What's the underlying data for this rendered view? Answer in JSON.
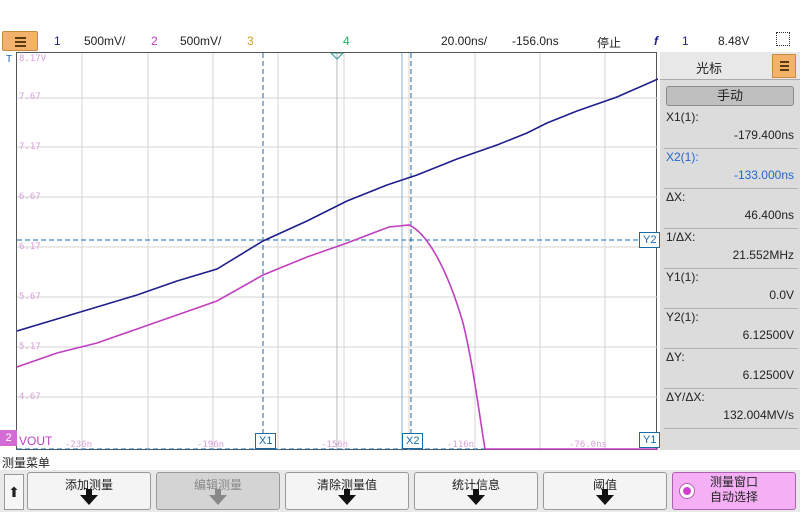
{
  "status": {
    "ch1_num": "1",
    "ch1_scale": "500mV/",
    "ch2_num": "2",
    "ch2_scale": "500mV/",
    "ch3_num": "3",
    "ch4_num": "4",
    "timebase": "20.00ns/",
    "delay": "-156.0ns",
    "run_state": "停止",
    "trigger_icon": "f",
    "trig_channel": "1",
    "trig_level": "8.48V"
  },
  "colors": {
    "ch1": "#1e1e8c",
    "ch2": "#c040c0",
    "ch3": "#d4a020",
    "ch4": "#20b060",
    "cursor": "#1a6aa8"
  },
  "screen": {
    "level_labels": [
      "8.17V",
      "7.67",
      "7.17",
      "6.67",
      "6.17",
      "5.67",
      "5.17",
      "4.67"
    ],
    "time_labels": [
      "-236n",
      "-196n",
      "-156n",
      "-116n",
      "-76.0ns"
    ],
    "cursor_tags": {
      "x1": "X1",
      "x2": "X2",
      "y1": "Y1",
      "y2": "Y2"
    },
    "t_marker": "T",
    "ch2_marker": "2",
    "ch2_label": "VOUT"
  },
  "panel": {
    "title": "光标",
    "mode": "手动",
    "items": [
      {
        "label": "X1(1):",
        "value": "-179.400ns"
      },
      {
        "label": "X2(1):",
        "value": "-133.000ns"
      },
      {
        "label": "ΔX:",
        "value": "46.400ns"
      },
      {
        "label": "1/ΔX:",
        "value": "21.552MHz"
      },
      {
        "label": "Y1(1):",
        "value": "0.0V"
      },
      {
        "label": "Y2(1):",
        "value": "6.12500V"
      },
      {
        "label": "ΔY:",
        "value": "6.12500V"
      },
      {
        "label": "ΔY/ΔX:",
        "value": "132.004MV/s"
      }
    ]
  },
  "menu": {
    "title": "测量菜单",
    "back_icon": "up-arrow-icon",
    "softkeys": [
      "添加测量",
      "编辑测量",
      "清除测量值",
      "统计信息",
      "阈值"
    ],
    "last_key_line1": "测量窗口",
    "last_key_line2": "自动选择"
  }
}
